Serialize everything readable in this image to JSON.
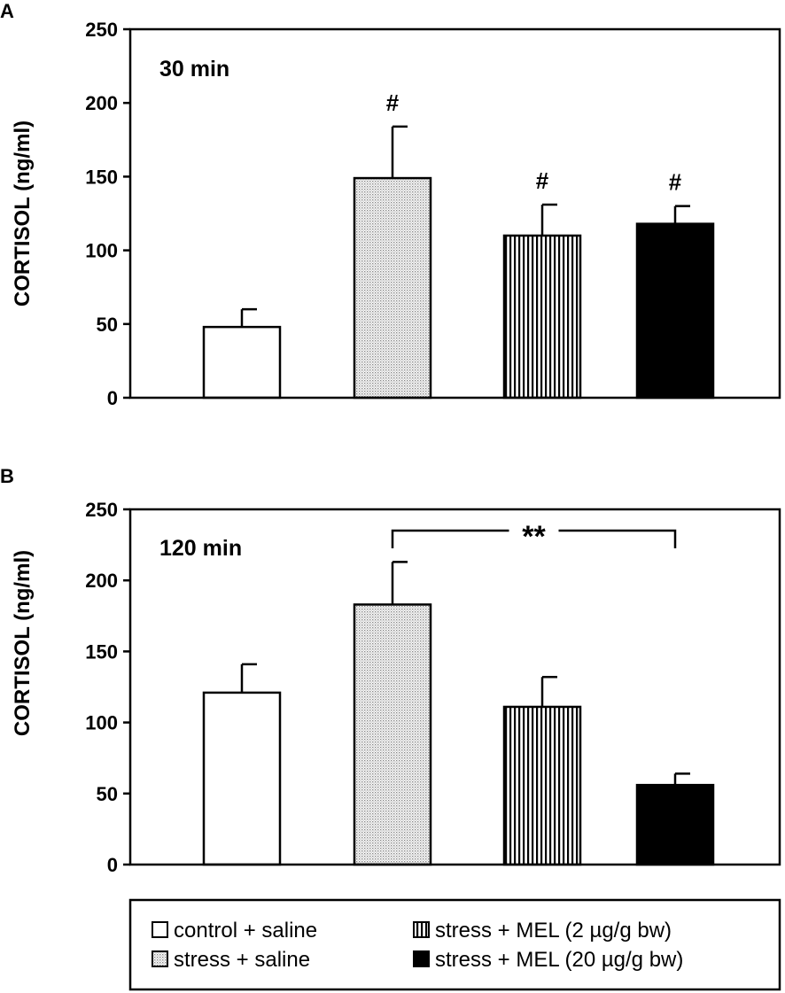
{
  "chart_data": [
    {
      "panel": "A",
      "type": "bar",
      "title": "30 min",
      "ylabel": "CORTISOL  (ng/ml)",
      "xlabel": "",
      "ylim": [
        0,
        250
      ],
      "yticks": [
        "0",
        "50",
        "100",
        "150",
        "200",
        "250"
      ],
      "categories": [
        "control + saline",
        "stress + saline",
        "stress + MEL (2 µg/g bw)",
        "stress + MEL (20 µg/g bw)"
      ],
      "values": [
        48,
        149,
        110,
        118
      ],
      "errors": [
        12,
        35,
        21,
        12
      ],
      "annotations": [
        "",
        "#",
        "#",
        "#"
      ],
      "grid": false
    },
    {
      "panel": "B",
      "type": "bar",
      "title": "120 min",
      "ylabel": "CORTISOL  (ng/ml)",
      "xlabel": "",
      "ylim": [
        0,
        250
      ],
      "yticks": [
        "0",
        "50",
        "100",
        "150",
        "200",
        "250"
      ],
      "categories": [
        "control + saline",
        "stress + saline",
        "stress + MEL (2 µg/g bw)",
        "stress + MEL (20 µg/g bw)"
      ],
      "values": [
        121,
        183,
        111,
        56
      ],
      "errors": [
        20,
        30,
        21,
        8
      ],
      "annotations": [
        "",
        "",
        "",
        ""
      ],
      "significance": {
        "label": "**",
        "from": 1,
        "to": 3
      },
      "grid": false
    }
  ],
  "legend": {
    "placement": "bottom",
    "items": [
      {
        "label": "control + saline",
        "pattern": "white"
      },
      {
        "label": "stress + MEL (2 µg/g bw)",
        "pattern": "vertical-stripes"
      },
      {
        "label": "stress + saline",
        "pattern": "dots"
      },
      {
        "label": "stress + MEL (20 µg/g bw)",
        "pattern": "black"
      }
    ]
  }
}
